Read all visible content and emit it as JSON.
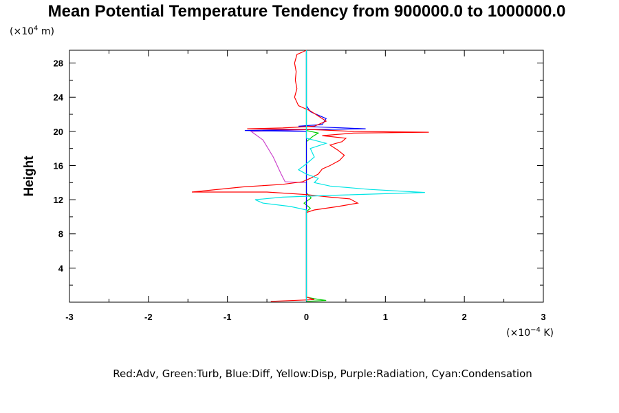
{
  "chart_data": {
    "type": "line",
    "title": "Mean Potential Temperature Tendency from 900000.0 to 1000000.0",
    "ylabel": "Height",
    "y_unit": {
      "prefix": "(×10",
      "exp": "4",
      "suffix": " m)"
    },
    "x_unit": {
      "prefix": "(×10",
      "exp": "−4",
      "suffix": " K)"
    },
    "xlim": [
      -3,
      3
    ],
    "ylim": [
      0,
      29.5
    ],
    "x_ticks": [
      -3,
      -2,
      -1,
      0,
      1,
      2,
      3
    ],
    "x_tick_labels": [
      "-3",
      "-2",
      "-1",
      "0",
      "1",
      "2",
      "3"
    ],
    "y_ticks": [
      4,
      8,
      12,
      16,
      20,
      24,
      28
    ],
    "y_tick_labels": [
      "4",
      "8",
      "12",
      "16",
      "20",
      "24",
      "28"
    ],
    "legend_text": "Red:Adv, Green:Turb, Blue:Diff, Yellow:Disp, Purple:Radiation, Cyan:Condensation",
    "series": [
      {
        "name": "Adv",
        "color": "#ff0000",
        "points": [
          [
            -0.45,
            0.1
          ],
          [
            0.1,
            0.3
          ],
          [
            0.0,
            0.6
          ],
          [
            0.0,
            10.5
          ],
          [
            0.1,
            10.8
          ],
          [
            0.4,
            11.2
          ],
          [
            0.65,
            11.6
          ],
          [
            0.55,
            12.1
          ],
          [
            0.3,
            12.3
          ],
          [
            0.0,
            12.6
          ],
          [
            -0.5,
            12.9
          ],
          [
            -1.45,
            12.9
          ],
          [
            -0.8,
            13.5
          ],
          [
            -0.3,
            13.8
          ],
          [
            -0.05,
            14.1
          ],
          [
            0.05,
            14.5
          ],
          [
            0.15,
            15.0
          ],
          [
            0.2,
            15.6
          ],
          [
            0.3,
            16.0
          ],
          [
            0.42,
            16.6
          ],
          [
            0.48,
            17.2
          ],
          [
            0.4,
            17.8
          ],
          [
            0.3,
            18.4
          ],
          [
            0.45,
            18.8
          ],
          [
            0.5,
            19.2
          ],
          [
            0.2,
            19.5
          ],
          [
            0.6,
            19.8
          ],
          [
            1.55,
            19.9
          ],
          [
            0.6,
            20.0
          ],
          [
            0.1,
            20.2
          ],
          [
            -0.75,
            20.3
          ],
          [
            -0.3,
            20.4
          ],
          [
            0.1,
            20.6
          ],
          [
            0.25,
            21.2
          ],
          [
            0.15,
            21.8
          ],
          [
            0.05,
            22.4
          ],
          [
            -0.1,
            23.0
          ],
          [
            -0.15,
            24.0
          ],
          [
            -0.12,
            25.0
          ],
          [
            -0.14,
            26.0
          ],
          [
            -0.13,
            27.0
          ],
          [
            -0.15,
            28.0
          ],
          [
            -0.12,
            29.0
          ],
          [
            0.0,
            29.5
          ]
        ]
      },
      {
        "name": "Turb",
        "color": "#00cc00",
        "points": [
          [
            0.0,
            0.1
          ],
          [
            0.25,
            0.2
          ],
          [
            0.1,
            0.4
          ],
          [
            0.0,
            0.6
          ],
          [
            0.0,
            10.6
          ],
          [
            0.05,
            11.0
          ],
          [
            -0.03,
            11.6
          ],
          [
            0.06,
            12.2
          ],
          [
            0.0,
            12.8
          ],
          [
            0.0,
            18.8
          ],
          [
            0.08,
            19.4
          ],
          [
            0.15,
            19.8
          ],
          [
            0.0,
            20.1
          ],
          [
            0.0,
            29.5
          ]
        ]
      },
      {
        "name": "Diff",
        "color": "#0000ff",
        "points": [
          [
            0.0,
            0.1
          ],
          [
            0.0,
            20.0
          ],
          [
            -0.78,
            20.1
          ],
          [
            0.0,
            20.2
          ],
          [
            0.75,
            20.3
          ],
          [
            0.2,
            20.5
          ],
          [
            -0.1,
            20.6
          ],
          [
            0.2,
            20.8
          ],
          [
            0.25,
            21.5
          ],
          [
            0.05,
            22.3
          ],
          [
            0.0,
            23.0
          ],
          [
            0.0,
            29.5
          ]
        ]
      },
      {
        "name": "Disp",
        "color": "#cccc00",
        "points": [
          [
            0.0,
            0.1
          ],
          [
            0.0,
            29.5
          ]
        ]
      },
      {
        "name": "Radiation",
        "color": "#cc44cc",
        "points": [
          [
            0.0,
            0.5
          ],
          [
            0.0,
            14.0
          ],
          [
            -0.27,
            14.1
          ],
          [
            -0.32,
            15.0
          ],
          [
            -0.42,
            17.0
          ],
          [
            -0.55,
            19.0
          ],
          [
            -0.7,
            20.0
          ],
          [
            -0.3,
            20.1
          ],
          [
            0.0,
            20.2
          ],
          [
            0.0,
            29.5
          ]
        ]
      },
      {
        "name": "Condensation",
        "color": "#00e5e5",
        "points": [
          [
            0.0,
            0.1
          ],
          [
            0.0,
            10.8
          ],
          [
            -0.2,
            11.2
          ],
          [
            -0.55,
            11.6
          ],
          [
            -0.65,
            12.0
          ],
          [
            -0.3,
            12.3
          ],
          [
            0.3,
            12.5
          ],
          [
            1.0,
            12.7
          ],
          [
            1.5,
            12.85
          ],
          [
            0.8,
            13.2
          ],
          [
            0.3,
            13.6
          ],
          [
            0.1,
            14.0
          ],
          [
            0.15,
            14.5
          ],
          [
            0.0,
            15.0
          ],
          [
            -0.1,
            15.5
          ],
          [
            0.0,
            16.2
          ],
          [
            0.1,
            17.0
          ],
          [
            0.05,
            18.0
          ],
          [
            0.25,
            18.6
          ],
          [
            0.0,
            19.2
          ],
          [
            0.0,
            29.5
          ]
        ]
      }
    ]
  }
}
